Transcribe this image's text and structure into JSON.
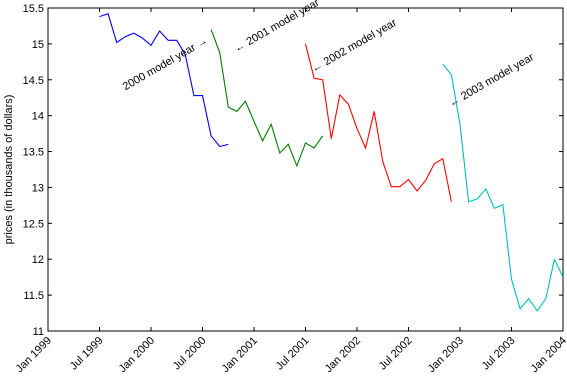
{
  "chart_data": {
    "type": "line",
    "title": "",
    "xlabel": "",
    "ylabel": "prices (in thousands of dollars)",
    "xlim": [
      "1999-01",
      "2004-01"
    ],
    "ylim": [
      11,
      15.5
    ],
    "grid": false,
    "legend": "none",
    "x_ticks": [
      {
        "date": "1999-01",
        "label": "Jan 1999"
      },
      {
        "date": "1999-07",
        "label": "Jul 1999"
      },
      {
        "date": "2000-01",
        "label": "Jan 2000"
      },
      {
        "date": "2000-07",
        "label": "Jul 2000"
      },
      {
        "date": "2001-01",
        "label": "Jan 2001"
      },
      {
        "date": "2001-07",
        "label": "Jul 2001"
      },
      {
        "date": "2002-01",
        "label": "Jan 2002"
      },
      {
        "date": "2002-07",
        "label": "Jul 2002"
      },
      {
        "date": "2003-01",
        "label": "Jan 2003"
      },
      {
        "date": "2003-07",
        "label": "Jul 2003"
      },
      {
        "date": "2004-01",
        "label": "Jan 2004"
      }
    ],
    "y_ticks": [
      {
        "value": 11,
        "label": "11"
      },
      {
        "value": 11.5,
        "label": "11.5"
      },
      {
        "value": 12,
        "label": "12"
      },
      {
        "value": 12.5,
        "label": "12.5"
      },
      {
        "value": 13,
        "label": "13"
      },
      {
        "value": 13.5,
        "label": "13.5"
      },
      {
        "value": 14,
        "label": "14"
      },
      {
        "value": 14.5,
        "label": "14.5"
      },
      {
        "value": 15,
        "label": "15"
      },
      {
        "value": 15.5,
        "label": "15.5"
      }
    ],
    "series": [
      {
        "color": "#0000ff",
        "x": [
          "1999-07",
          "1999-08",
          "1999-09",
          "1999-10",
          "1999-11",
          "1999-12",
          "2000-01",
          "2000-02",
          "2000-03",
          "2000-04",
          "2000-05",
          "2000-06",
          "2000-07",
          "2000-08",
          "2000-09",
          "2000-10"
        ],
        "y": [
          15.38,
          15.42,
          15.02,
          15.1,
          15.15,
          15.08,
          14.98,
          15.18,
          15.05,
          15.05,
          14.85,
          14.28,
          14.28,
          13.72,
          13.57,
          13.6
        ]
      },
      {
        "color": "#007f00",
        "x": [
          "2000-08",
          "2000-09",
          "2000-10",
          "2000-11",
          "2000-12",
          "2001-01",
          "2001-02",
          "2001-03",
          "2001-04",
          "2001-05",
          "2001-06",
          "2001-07",
          "2001-08",
          "2001-09"
        ],
        "y": [
          15.2,
          14.88,
          14.12,
          14.06,
          14.2,
          13.92,
          13.65,
          13.88,
          13.48,
          13.6,
          13.3,
          13.62,
          13.55,
          13.72
        ]
      },
      {
        "color": "#ff0000",
        "x": [
          "2001-07",
          "2001-08",
          "2001-09",
          "2001-10",
          "2001-11",
          "2001-12",
          "2002-01",
          "2002-02",
          "2002-03",
          "2002-04",
          "2002-05",
          "2002-06",
          "2002-07",
          "2002-08",
          "2002-09",
          "2002-10",
          "2002-11",
          "2002-12"
        ],
        "y": [
          15.0,
          14.52,
          14.5,
          13.68,
          14.29,
          14.16,
          13.82,
          13.55,
          14.06,
          13.36,
          13.01,
          13.01,
          13.11,
          12.95,
          13.1,
          13.33,
          13.4,
          12.8
        ]
      },
      {
        "color": "#00bfbf",
        "x": [
          "2002-11",
          "2002-12",
          "2003-01",
          "2003-02",
          "2003-03",
          "2003-04",
          "2003-05",
          "2003-06",
          "2003-07",
          "2003-08",
          "2003-09",
          "2003-10",
          "2003-11",
          "2003-12"
        ],
        "y": [
          14.72,
          14.57,
          13.88,
          12.8,
          12.84,
          12.98,
          12.71,
          12.76,
          11.72,
          11.31,
          11.45,
          11.28,
          11.45,
          12.0
        ]
      },
      {
        "color": "#00bfbf",
        "x": [
          "2003-12",
          "2004-01"
        ],
        "y": [
          12.0,
          11.75
        ]
      }
    ],
    "annotations": [
      {
        "text": "2000 model year →",
        "x": "1999-10",
        "y": 14.35,
        "rotate": -30
      },
      {
        "text": "← 2001 model year",
        "x": "2000-11",
        "y": 14.88,
        "rotate": -30
      },
      {
        "text": "← 2002 model year",
        "x": "2001-08",
        "y": 14.6,
        "rotate": -30
      },
      {
        "text": "← 2003 model year",
        "x": "2002-12",
        "y": 14.12,
        "rotate": -30
      }
    ]
  }
}
